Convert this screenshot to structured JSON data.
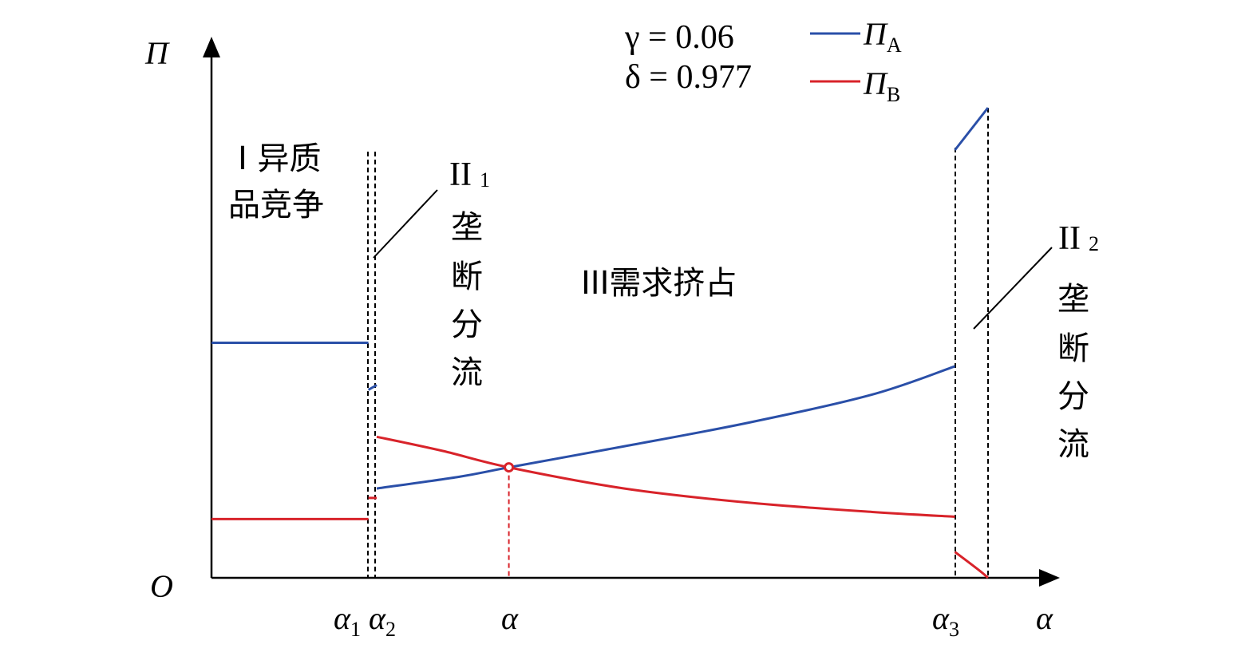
{
  "chart_data": {
    "type": "line",
    "axes": {
      "x_label": "α",
      "y_label": "Π",
      "origin_label": "O"
    },
    "params": {
      "gamma_label": "γ = 0.06",
      "delta_label": "δ = 0.977"
    },
    "legend": {
      "placement": "top-right",
      "entries": [
        {
          "name": "Π",
          "sub": "A",
          "color": "#2a4fa8"
        },
        {
          "name": "Π",
          "sub": "B",
          "color": "#d8232a"
        }
      ]
    },
    "x_ticks": [
      {
        "base": "α",
        "sub": "1",
        "x": 0.19
      },
      {
        "base": "α",
        "sub": "2",
        "x": 0.2
      },
      {
        "base": "α",
        "sub": "",
        "x": 0.36
      },
      {
        "base": "α",
        "sub": "3",
        "x": 0.9
      }
    ],
    "regions": {
      "r1_line1": "I 异质",
      "r1_line2": "品竞争",
      "r2a_head": "II",
      "r2a_sub": "1",
      "r2a_chars": [
        "垄",
        "断",
        "分",
        "流"
      ],
      "r3": "III需求挤占",
      "r2b_head": "II",
      "r2b_sub": "2",
      "r2b_chars": [
        "垄",
        "断",
        "分",
        "流"
      ]
    },
    "series": [
      {
        "name": "Π_A",
        "color": "#2a4fa8",
        "segments": [
          {
            "x": [
              0.0,
              0.19
            ],
            "y": [
              0.5,
              0.5
            ]
          },
          {
            "x": [
              0.19,
              0.2
            ],
            "y": [
              0.4,
              0.41
            ]
          },
          {
            "x": [
              0.2,
              0.3,
              0.36,
              0.5,
              0.65,
              0.8,
              0.9
            ],
            "y": [
              0.19,
              0.215,
              0.235,
              0.28,
              0.33,
              0.39,
              0.45
            ]
          },
          {
            "x": [
              0.9,
              0.94
            ],
            "y": [
              0.91,
              1.0
            ]
          }
        ]
      },
      {
        "name": "Π_B",
        "color": "#d8232a",
        "segments": [
          {
            "x": [
              0.0,
              0.19
            ],
            "y": [
              0.125,
              0.125
            ]
          },
          {
            "x": [
              0.19,
              0.2
            ],
            "y": [
              0.17,
              0.17
            ]
          },
          {
            "x": [
              0.2,
              0.28,
              0.36,
              0.5,
              0.65,
              0.8,
              0.9
            ],
            "y": [
              0.3,
              0.27,
              0.235,
              0.19,
              0.16,
              0.14,
              0.13
            ]
          },
          {
            "x": [
              0.9,
              0.93,
              0.94
            ],
            "y": [
              0.055,
              0.015,
              0.0
            ]
          }
        ]
      }
    ],
    "intersection": {
      "x": 0.36,
      "y": 0.235,
      "color": "#d8232a"
    }
  }
}
